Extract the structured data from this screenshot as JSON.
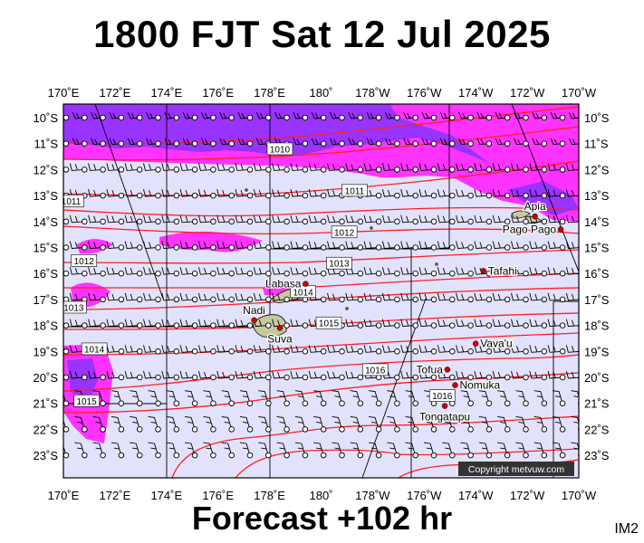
{
  "header": {
    "title": "1800 FJT Sat 12 Jul 2025"
  },
  "footer": {
    "forecast": "Forecast +102 hr",
    "code": "IM2"
  },
  "map": {
    "copyright": "Copyright metvuw.com",
    "lon_labels": [
      "170˚E",
      "172˚E",
      "174˚E",
      "176˚E",
      "178˚E",
      "180˚",
      "178˚W",
      "176˚W",
      "174˚W",
      "172˚W",
      "170˚W"
    ],
    "lat_labels": [
      "10˚S",
      "11˚S",
      "12˚S",
      "13˚S",
      "14˚S",
      "15˚S",
      "16˚S",
      "17˚S",
      "18˚S",
      "19˚S",
      "20˚S",
      "21˚S",
      "22˚S",
      "23˚S"
    ],
    "isobar_labels": [
      {
        "text": "1010",
        "lon": 178.4,
        "lat": -11.2
      },
      {
        "text": "1011",
        "lon": -178.7,
        "lat": -12.8
      },
      {
        "text": "1011",
        "lon": 170.3,
        "lat": -13.2
      },
      {
        "text": "1012",
        "lon": -179.1,
        "lat": -14.4
      },
      {
        "text": "1012",
        "lon": 170.8,
        "lat": -15.5
      },
      {
        "text": "1013",
        "lon": -179.3,
        "lat": -15.6
      },
      {
        "text": "1013",
        "lon": 170.4,
        "lat": -17.3
      },
      {
        "text": "1014",
        "lon": 179.3,
        "lat": -16.7
      },
      {
        "text": "1014",
        "lon": 171.2,
        "lat": -18.9
      },
      {
        "text": "1015",
        "lon": -179.7,
        "lat": -17.9
      },
      {
        "text": "1015",
        "lon": 170.9,
        "lat": -20.9
      },
      {
        "text": "1016",
        "lon": -177.9,
        "lat": -19.7
      },
      {
        "text": "1016",
        "lon": -175.3,
        "lat": -20.7
      }
    ],
    "places": [
      {
        "name": "Apia",
        "lon": -171.7,
        "lat": -13.8,
        "label_pos": "above"
      },
      {
        "name": "Pago Pago",
        "lon": -170.7,
        "lat": -14.3,
        "label_pos": "left"
      },
      {
        "name": "Tafahi",
        "lon": -173.7,
        "lat": -15.9,
        "label_pos": "right"
      },
      {
        "name": "Labasa",
        "lon": 179.4,
        "lat": -16.4,
        "label_pos": "left"
      },
      {
        "name": "Nadi",
        "lon": 177.4,
        "lat": -17.8,
        "label_pos": "above"
      },
      {
        "name": "Suva",
        "lon": 178.4,
        "lat": -18.1,
        "label_pos": "below"
      },
      {
        "name": "Vava'u",
        "lon": -174.0,
        "lat": -18.7,
        "label_pos": "right"
      },
      {
        "name": "Tofua",
        "lon": -175.1,
        "lat": -19.7,
        "label_pos": "left"
      },
      {
        "name": "Nomuka",
        "lon": -174.8,
        "lat": -20.3,
        "label_pos": "right"
      },
      {
        "name": "Tongatapu",
        "lon": -175.2,
        "lat": -21.1,
        "label_pos": "below"
      }
    ],
    "colors": {
      "background": "#e2e2fc",
      "rain_light": "#ff33ff",
      "rain_heavy": "#9933ff",
      "isobar": "#ff2020",
      "land": "#c8c8a0",
      "grid": "#000000"
    }
  }
}
